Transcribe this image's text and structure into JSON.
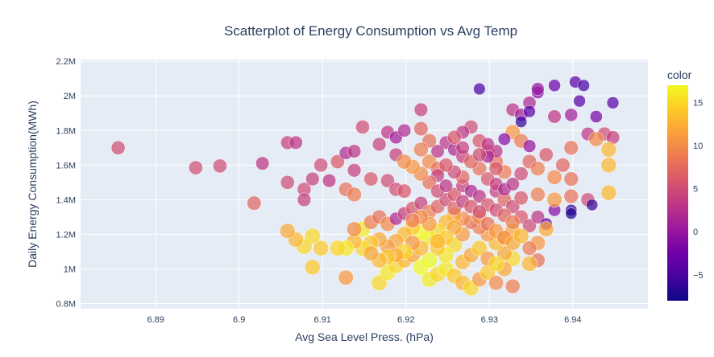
{
  "chart_data": {
    "type": "scatter",
    "title": "Scatterplot of Energy Consumption vs Avg Temp",
    "xlabel": "Avg Sea Level Press. (hPa)",
    "ylabel": "Daily Energy Consumption(MWh)",
    "xlim": [
      6.881,
      6.949
    ],
    "ylim": [
      0.77,
      2.21
    ],
    "x_ticks": [
      6.89,
      6.9,
      6.91,
      6.92,
      6.93,
      6.94
    ],
    "x_tick_labels": [
      "6.89",
      "6.9",
      "6.91",
      "6.92",
      "6.93",
      "6.94"
    ],
    "y_ticks": [
      0.8,
      1.0,
      1.2,
      1.4,
      1.6,
      1.8,
      2.0,
      2.2
    ],
    "y_tick_labels": [
      "0.8M",
      "1M",
      "1.2M",
      "1.4M",
      "1.6M",
      "1.8M",
      "2M",
      "2.2M"
    ],
    "colorbar": {
      "title": "color",
      "range": [
        -8,
        17
      ],
      "ticks": [
        -5,
        0,
        5,
        10,
        15
      ],
      "tick_labels": [
        "−5",
        "0",
        "5",
        "10",
        "15"
      ],
      "colorscale": [
        "#0d0887",
        "#46039f",
        "#7201a8",
        "#9c179e",
        "#bd3786",
        "#d8576b",
        "#ed7953",
        "#fb9f3a",
        "#fdca26",
        "#f0f921"
      ]
    },
    "grid": true,
    "plot_bgcolor": "#e5ecf6",
    "points": [
      [
        6.8855,
        1.7,
        5
      ],
      [
        6.8948,
        1.585,
        5
      ],
      [
        6.8977,
        1.595,
        5
      ],
      [
        6.9028,
        1.61,
        3
      ],
      [
        6.9018,
        1.38,
        7
      ],
      [
        6.9058,
        1.73,
        4
      ],
      [
        6.9068,
        1.73,
        3
      ],
      [
        6.9058,
        1.5,
        5
      ],
      [
        6.9078,
        1.46,
        5
      ],
      [
        6.9078,
        1.4,
        4
      ],
      [
        6.9088,
        1.52,
        4
      ],
      [
        6.9098,
        1.6,
        5
      ],
      [
        6.9108,
        1.51,
        3
      ],
      [
        6.9118,
        1.62,
        6
      ],
      [
        6.9128,
        1.67,
        2
      ],
      [
        6.9138,
        1.68,
        3
      ],
      [
        6.9138,
        1.57,
        4
      ],
      [
        6.9148,
        1.82,
        5
      ],
      [
        6.9168,
        1.72,
        4
      ],
      [
        6.9178,
        1.79,
        3
      ],
      [
        6.9188,
        1.76,
        1
      ],
      [
        6.9198,
        1.8,
        2
      ],
      [
        6.9188,
        1.66,
        4
      ],
      [
        6.9158,
        1.52,
        6
      ],
      [
        6.9128,
        1.46,
        8
      ],
      [
        6.9138,
        1.43,
        9
      ],
      [
        6.9178,
        1.51,
        5
      ],
      [
        6.9188,
        1.46,
        5
      ],
      [
        6.9198,
        1.45,
        6
      ],
      [
        6.9218,
        1.92,
        4
      ],
      [
        6.9218,
        1.81,
        7
      ],
      [
        6.9228,
        1.74,
        8
      ],
      [
        6.9218,
        1.69,
        9
      ],
      [
        6.9228,
        1.62,
        10
      ],
      [
        6.9238,
        1.58,
        8
      ],
      [
        6.9248,
        1.73,
        3
      ],
      [
        6.9258,
        1.69,
        2
      ],
      [
        6.9268,
        1.65,
        4
      ],
      [
        6.9278,
        1.82,
        5
      ],
      [
        6.9268,
        1.79,
        3
      ],
      [
        6.9288,
        1.74,
        6
      ],
      [
        6.9298,
        1.68,
        7
      ],
      [
        6.9308,
        1.62,
        8
      ],
      [
        6.9318,
        1.56,
        9
      ],
      [
        6.9328,
        1.79,
        11
      ],
      [
        6.9338,
        1.74,
        9
      ],
      [
        6.9328,
        1.92,
        3
      ],
      [
        6.9338,
        1.89,
        1
      ],
      [
        6.9348,
        1.96,
        2
      ],
      [
        6.9358,
        2.02,
        -1
      ],
      [
        6.9288,
        2.04,
        -5
      ],
      [
        6.9358,
        2.04,
        0
      ],
      [
        6.9378,
        2.06,
        -3
      ],
      [
        6.9398,
        1.89,
        1
      ],
      [
        6.9378,
        1.88,
        3
      ],
      [
        6.9408,
        1.97,
        -4
      ],
      [
        6.9403,
        2.08,
        -4
      ],
      [
        6.9413,
        2.06,
        -5
      ],
      [
        6.9428,
        1.88,
        -2
      ],
      [
        6.9448,
        1.96,
        -4
      ],
      [
        6.9418,
        1.78,
        3
      ],
      [
        6.9438,
        1.78,
        5
      ],
      [
        6.9448,
        1.76,
        4
      ],
      [
        6.9348,
        1.71,
        0
      ],
      [
        6.9338,
        1.85,
        -6
      ],
      [
        6.9348,
        1.91,
        -4
      ],
      [
        6.9318,
        1.75,
        -1
      ],
      [
        6.9308,
        1.68,
        3
      ],
      [
        6.9298,
        1.65,
        1
      ],
      [
        6.9308,
        1.45,
        4
      ],
      [
        6.9318,
        1.4,
        7
      ],
      [
        6.9328,
        1.36,
        5
      ],
      [
        6.9338,
        1.3,
        6
      ],
      [
        6.9348,
        1.25,
        5
      ],
      [
        6.9358,
        1.3,
        3
      ],
      [
        6.9368,
        1.26,
        -2
      ],
      [
        6.9378,
        1.34,
        -1
      ],
      [
        6.9398,
        1.42,
        8
      ],
      [
        6.9398,
        1.34,
        -6
      ],
      [
        6.9398,
        1.32,
        -7
      ],
      [
        6.9418,
        1.4,
        5
      ],
      [
        6.9423,
        1.37,
        -6
      ],
      [
        6.9443,
        1.44,
        13
      ],
      [
        6.9443,
        1.6,
        13
      ],
      [
        6.9443,
        1.69,
        13
      ],
      [
        6.9428,
        1.75,
        10
      ],
      [
        6.9398,
        1.7,
        8
      ],
      [
        6.9378,
        1.53,
        10
      ],
      [
        6.9378,
        1.4,
        11
      ],
      [
        6.9358,
        1.43,
        9
      ],
      [
        6.9368,
        1.23,
        12
      ],
      [
        6.9358,
        1.15,
        11
      ],
      [
        6.9348,
        1.12,
        9
      ],
      [
        6.9358,
        1.05,
        8
      ],
      [
        6.9348,
        1.03,
        13
      ],
      [
        6.9328,
        1.06,
        15
      ],
      [
        6.9318,
        1.09,
        12
      ],
      [
        6.9308,
        1.15,
        13
      ],
      [
        6.9298,
        1.2,
        11
      ],
      [
        6.9288,
        1.24,
        9
      ],
      [
        6.9278,
        1.27,
        8
      ],
      [
        6.9268,
        1.29,
        10
      ],
      [
        6.9258,
        1.31,
        12
      ],
      [
        6.9248,
        1.27,
        13
      ],
      [
        6.9238,
        1.22,
        15
      ],
      [
        6.9228,
        1.18,
        16
      ],
      [
        6.9218,
        1.21,
        17
      ],
      [
        6.9208,
        1.24,
        14
      ],
      [
        6.9198,
        1.2,
        13
      ],
      [
        6.9188,
        1.16,
        12
      ],
      [
        6.9178,
        1.13,
        11
      ],
      [
        6.9168,
        1.17,
        12
      ],
      [
        6.9158,
        1.15,
        14
      ],
      [
        6.9148,
        1.12,
        15
      ],
      [
        6.9138,
        1.16,
        13
      ],
      [
        6.9128,
        1.12,
        16
      ],
      [
        6.9118,
        1.12,
        15
      ],
      [
        6.9098,
        1.12,
        14
      ],
      [
        6.9088,
        1.19,
        15
      ],
      [
        6.9078,
        1.13,
        15
      ],
      [
        6.9068,
        1.17,
        13
      ],
      [
        6.9058,
        1.22,
        12
      ],
      [
        6.9088,
        1.01,
        14
      ],
      [
        6.9128,
        0.95,
        11
      ],
      [
        6.9168,
        0.92,
        15
      ],
      [
        6.9178,
        0.98,
        16
      ],
      [
        6.9188,
        1.02,
        15
      ],
      [
        6.9198,
        1.05,
        13
      ],
      [
        6.9208,
        1.08,
        12
      ],
      [
        6.9218,
        1.01,
        17
      ],
      [
        6.9228,
        0.94,
        16
      ],
      [
        6.9238,
        0.97,
        15
      ],
      [
        6.9248,
        1.0,
        16
      ],
      [
        6.9258,
        0.96,
        14
      ],
      [
        6.9268,
        0.92,
        13
      ],
      [
        6.9278,
        0.89,
        15
      ],
      [
        6.9288,
        0.94,
        11
      ],
      [
        6.9298,
        0.98,
        14
      ],
      [
        6.9308,
        0.92,
        10
      ],
      [
        6.9318,
        1.0,
        12
      ],
      [
        6.9328,
        0.9,
        9
      ],
      [
        6.9268,
        1.04,
        13
      ],
      [
        6.9278,
        1.08,
        12
      ],
      [
        6.9288,
        1.12,
        14
      ],
      [
        6.9298,
        1.06,
        11
      ],
      [
        6.9308,
        1.03,
        15
      ],
      [
        6.9318,
        1.18,
        13
      ],
      [
        6.9328,
        1.22,
        12
      ],
      [
        6.9258,
        1.14,
        15
      ],
      [
        6.9248,
        1.08,
        16
      ],
      [
        6.9238,
        1.12,
        14
      ],
      [
        6.9228,
        1.05,
        17
      ],
      [
        6.9218,
        1.12,
        13
      ],
      [
        6.9208,
        1.15,
        11
      ],
      [
        6.9198,
        1.1,
        15
      ],
      [
        6.9188,
        1.08,
        12
      ],
      [
        6.9178,
        1.07,
        14
      ],
      [
        6.9168,
        1.05,
        13
      ],
      [
        6.9158,
        1.09,
        12
      ],
      [
        6.9148,
        1.23,
        16
      ],
      [
        6.9138,
        1.23,
        10
      ],
      [
        6.9158,
        1.27,
        9
      ],
      [
        6.9168,
        1.3,
        8
      ],
      [
        6.9178,
        1.26,
        10
      ],
      [
        6.9188,
        1.29,
        2
      ],
      [
        6.9198,
        1.32,
        4
      ],
      [
        6.9208,
        1.35,
        6
      ],
      [
        6.9218,
        1.38,
        4
      ],
      [
        6.9228,
        1.33,
        9
      ],
      [
        6.9238,
        1.36,
        7
      ],
      [
        6.9248,
        1.4,
        5
      ],
      [
        6.9258,
        1.43,
        6
      ],
      [
        6.9268,
        1.48,
        4
      ],
      [
        6.9278,
        1.45,
        2
      ],
      [
        6.9288,
        1.42,
        3
      ],
      [
        6.9298,
        1.37,
        6
      ],
      [
        6.9308,
        1.34,
        5
      ],
      [
        6.9318,
        1.31,
        7
      ],
      [
        6.9328,
        1.27,
        9
      ],
      [
        6.9338,
        1.41,
        6
      ],
      [
        6.9268,
        1.53,
        7
      ],
      [
        6.9258,
        1.56,
        5
      ],
      [
        6.9248,
        1.6,
        6
      ],
      [
        6.9238,
        1.54,
        4
      ],
      [
        6.9228,
        1.5,
        8
      ],
      [
        6.9218,
        1.55,
        10
      ],
      [
        6.9208,
        1.59,
        11
      ],
      [
        6.9198,
        1.62,
        10
      ],
      [
        6.9288,
        1.58,
        8
      ],
      [
        6.9298,
        1.52,
        6
      ],
      [
        6.9308,
        1.49,
        4
      ],
      [
        6.9318,
        1.46,
        2
      ],
      [
        6.9328,
        1.49,
        3
      ],
      [
        6.9338,
        1.55,
        5
      ],
      [
        6.9348,
        1.62,
        7
      ],
      [
        6.9358,
        1.58,
        9
      ],
      [
        6.9368,
        1.66,
        6
      ],
      [
        6.9388,
        1.6,
        7
      ],
      [
        6.9398,
        1.52,
        8
      ],
      [
        6.9288,
        1.3,
        10
      ],
      [
        6.9298,
        1.26,
        8
      ],
      [
        6.9308,
        1.22,
        11
      ],
      [
        6.9318,
        1.18,
        10
      ],
      [
        6.9328,
        1.15,
        12
      ],
      [
        6.9338,
        1.19,
        13
      ],
      [
        6.9268,
        1.2,
        11
      ],
      [
        6.9258,
        1.24,
        12
      ],
      [
        6.9248,
        1.18,
        14
      ],
      [
        6.9238,
        1.16,
        13
      ],
      [
        6.9228,
        1.26,
        11
      ],
      [
        6.9218,
        1.3,
        10
      ],
      [
        6.9208,
        1.28,
        9
      ],
      [
        6.9238,
        1.45,
        5
      ],
      [
        6.9248,
        1.48,
        3
      ],
      [
        6.9258,
        1.35,
        7
      ],
      [
        6.9268,
        1.39,
        4
      ],
      [
        6.9278,
        1.36,
        6
      ],
      [
        6.9288,
        1.33,
        5
      ],
      [
        6.9278,
        1.62,
        7
      ],
      [
        6.9288,
        1.66,
        5
      ],
      [
        6.9298,
        1.72,
        3
      ],
      [
        6.9308,
        1.58,
        6
      ],
      [
        6.9268,
        1.7,
        4
      ],
      [
        6.9258,
        1.76,
        6
      ],
      [
        6.9238,
        1.68,
        3
      ]
    ]
  }
}
